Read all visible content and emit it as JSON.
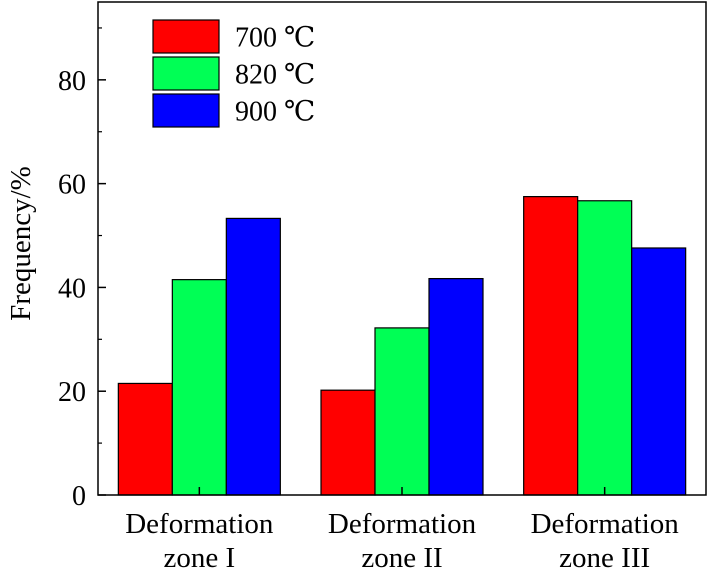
{
  "chart_data": {
    "type": "bar",
    "title": "",
    "xlabel": "",
    "ylabel": "Frequency/%",
    "ylim": [
      0,
      95
    ],
    "yticks": [
      0,
      20,
      40,
      60,
      80
    ],
    "categories": [
      [
        "Deformation",
        "zone I"
      ],
      [
        "Deformation",
        "zone II"
      ],
      [
        "Deformation",
        "zone III"
      ]
    ],
    "series": [
      {
        "name": "700 ℃",
        "color": "#ff0000",
        "values": [
          21.5,
          20.2,
          57.5
        ]
      },
      {
        "name": "820 ℃",
        "color": "#00ff55",
        "values": [
          41.5,
          32.2,
          56.7
        ]
      },
      {
        "name": "900 ℃",
        "color": "#0000ff",
        "values": [
          53.3,
          41.7,
          47.6
        ]
      }
    ],
    "legend_position": "top-left",
    "grid": false
  }
}
